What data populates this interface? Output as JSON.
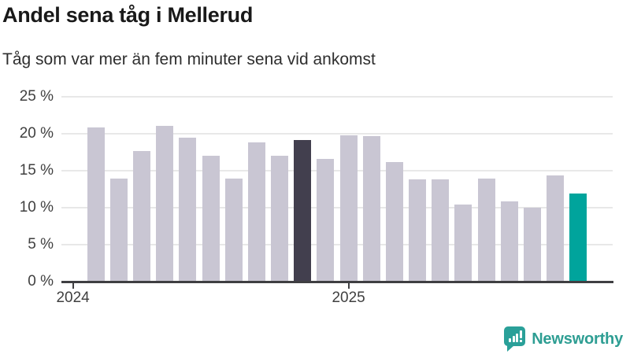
{
  "header": {
    "title": "Andel sena tåg i Mellerud",
    "subtitle": "Tåg som var mer än fem minuter sena vid ankomst"
  },
  "chart_data": {
    "type": "bar",
    "title": "Andel sena tåg i Mellerud",
    "subtitle": "Tåg som var mer än fem minuter sena vid ankomst",
    "unit": "%",
    "ylim": [
      0,
      25
    ],
    "grid": true,
    "legend": "none",
    "y_axis": {
      "ticks": [
        {
          "value": 0,
          "label": "0 %"
        },
        {
          "value": 5,
          "label": "5 %"
        },
        {
          "value": 10,
          "label": "10 %"
        },
        {
          "value": 15,
          "label": "15 %"
        },
        {
          "value": 20,
          "label": "20 %"
        },
        {
          "value": 25,
          "label": "25 %"
        }
      ]
    },
    "x_axis": {
      "slots": 24,
      "ticks": [
        {
          "slot": 0,
          "label": "2024"
        },
        {
          "slot": 12,
          "label": "2025"
        }
      ]
    },
    "series": [
      {
        "slot": 1,
        "value": 20.8,
        "role": "default"
      },
      {
        "slot": 2,
        "value": 13.9,
        "role": "default"
      },
      {
        "slot": 3,
        "value": 17.6,
        "role": "default"
      },
      {
        "slot": 4,
        "value": 21.0,
        "role": "default"
      },
      {
        "slot": 5,
        "value": 19.4,
        "role": "default"
      },
      {
        "slot": 6,
        "value": 17.0,
        "role": "default"
      },
      {
        "slot": 7,
        "value": 13.9,
        "role": "default"
      },
      {
        "slot": 8,
        "value": 18.8,
        "role": "default"
      },
      {
        "slot": 9,
        "value": 17.0,
        "role": "default"
      },
      {
        "slot": 10,
        "value": 19.1,
        "role": "highlight-dark"
      },
      {
        "slot": 11,
        "value": 16.5,
        "role": "default"
      },
      {
        "slot": 12,
        "value": 19.7,
        "role": "default"
      },
      {
        "slot": 13,
        "value": 19.6,
        "role": "default"
      },
      {
        "slot": 14,
        "value": 16.1,
        "role": "default"
      },
      {
        "slot": 15,
        "value": 13.8,
        "role": "default"
      },
      {
        "slot": 16,
        "value": 13.8,
        "role": "default"
      },
      {
        "slot": 17,
        "value": 10.4,
        "role": "default"
      },
      {
        "slot": 18,
        "value": 13.9,
        "role": "default"
      },
      {
        "slot": 19,
        "value": 10.8,
        "role": "default"
      },
      {
        "slot": 20,
        "value": 9.9,
        "role": "default"
      },
      {
        "slot": 21,
        "value": 14.3,
        "role": "default"
      },
      {
        "slot": 22,
        "value": 11.9,
        "role": "highlight-current"
      }
    ],
    "colors": {
      "bar_default": "#c9c6d3",
      "bar_highlight_dark": "#423f4e",
      "bar_highlight_current": "#00a49c",
      "gridline": "#e8e8e8",
      "axis": "#3f3f42",
      "label": "#404040"
    }
  },
  "footer": {
    "brand_label": "Newsworthy",
    "brand_color": "#2e9e93",
    "logo_icon": "bar-chart-speech-bubble-icon"
  }
}
